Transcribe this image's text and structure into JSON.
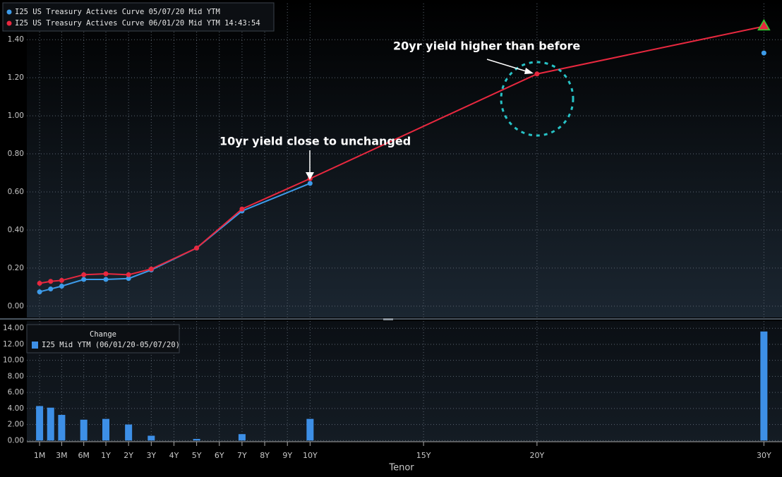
{
  "chart_data": [
    {
      "type": "line",
      "categories": [
        "1M",
        "2M",
        "3M",
        "6M",
        "1Y",
        "2Y",
        "3Y",
        "5Y",
        "7Y",
        "10Y",
        "20Y",
        "30Y"
      ],
      "series": [
        {
          "name": "I25 US Treasury Actives Curve 05/07/20 Mid YTM",
          "color": "#3d9be9",
          "values": [
            0.075,
            0.09,
            0.105,
            0.14,
            0.14,
            0.145,
            0.19,
            0.305,
            0.5,
            0.645,
            null,
            1.33
          ]
        },
        {
          "name": "I25 US Treasury Actives Curve 06/01/20 Mid YTM 14:43:54",
          "color": "#e8283f",
          "values": [
            0.12,
            0.13,
            0.135,
            0.165,
            0.17,
            0.165,
            0.195,
            0.305,
            0.51,
            0.67,
            1.22,
            1.47
          ]
        }
      ],
      "ylim": [
        -0.06,
        1.59
      ],
      "yticks": [
        {
          "value": 0,
          "label": "0.00"
        },
        {
          "value": 0.2,
          "label": "0.20"
        },
        {
          "value": 0.4,
          "label": "0.40"
        },
        {
          "value": 0.6,
          "label": "0.60"
        },
        {
          "value": 0.8,
          "label": "0.80"
        },
        {
          "value": 1.0,
          "label": "1.00"
        },
        {
          "value": 1.2,
          "label": "1.20"
        },
        {
          "value": 1.4,
          "label": "1.40"
        }
      ],
      "grid": true,
      "annotations": [
        "20yr yield higher than before",
        "10yr yield close to unchanged"
      ]
    },
    {
      "type": "bar",
      "legend_title": "Change",
      "categories": [
        "1M",
        "2M",
        "3M",
        "6M",
        "1Y",
        "2Y",
        "3Y",
        "5Y",
        "7Y",
        "10Y",
        "20Y",
        "30Y"
      ],
      "series": [
        {
          "name": "I25 Mid YTM (06/01/20-05/07/20)",
          "color": "#3d8fe6",
          "values": [
            4.3,
            4.1,
            3.2,
            2.6,
            2.7,
            2.0,
            0.6,
            0.2,
            0.8,
            2.7,
            null,
            13.6
          ]
        }
      ],
      "ylim": [
        -0.5,
        14.9
      ],
      "yticks": [
        {
          "value": 0,
          "label": "0.00"
        },
        {
          "value": 2,
          "label": "2.00"
        },
        {
          "value": 4,
          "label": "4.00"
        },
        {
          "value": 6,
          "label": "6.00"
        },
        {
          "value": 8,
          "label": "8.00"
        },
        {
          "value": 10,
          "label": "10.00"
        },
        {
          "value": 12,
          "label": "12.00"
        },
        {
          "value": 14,
          "label": "14.00"
        }
      ],
      "xticks": [
        "1M",
        "3M",
        "6M",
        "1Y",
        "2Y",
        "3Y",
        "4Y",
        "5Y",
        "6Y",
        "7Y",
        "8Y",
        "9Y",
        "10Y",
        "15Y",
        "20Y",
        "30Y"
      ],
      "xlabel": "Tenor",
      "grid": true
    }
  ]
}
